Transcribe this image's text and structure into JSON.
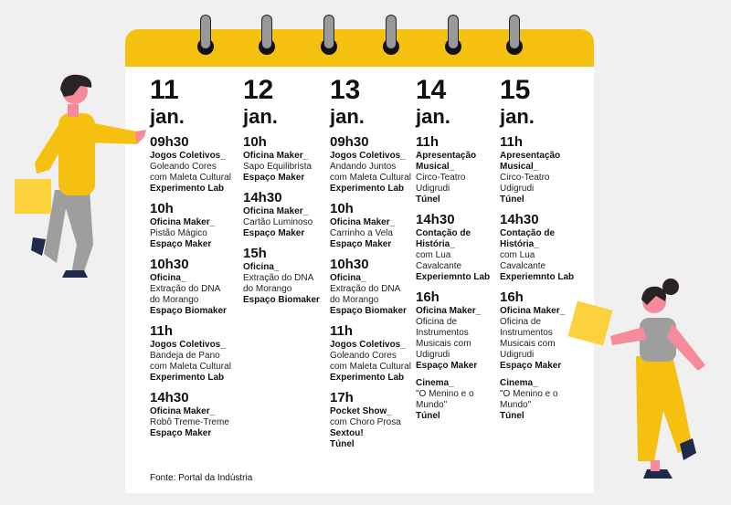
{
  "colors": {
    "accent": "#f5c010",
    "background": "#f0f0f0",
    "skin": "#f48a9a"
  },
  "days": [
    {
      "day": "11",
      "month": "jan.",
      "entries": [
        {
          "time": "09h30",
          "blocks": [
            {
              "title": "Jogos Coletivos_",
              "desc": "Goleando Cores com Maleta Cultural",
              "place": [
                "Experimento Lab"
              ]
            }
          ]
        },
        {
          "time": "10h",
          "blocks": [
            {
              "title": "Oficina Maker_",
              "desc": "Pistão Mágico",
              "place": [
                "Espaço Maker"
              ]
            }
          ]
        },
        {
          "time": "10h30",
          "blocks": [
            {
              "title": "Oficina_",
              "desc": "Extração do DNA do Morango",
              "place": [
                "Espaço Biomaker"
              ]
            }
          ]
        },
        {
          "time": "11h",
          "blocks": [
            {
              "title": "Jogos Coletivos_",
              "desc": "Bandeja de Pano com Maleta Cultural",
              "place": [
                "Experimento Lab"
              ]
            }
          ]
        },
        {
          "time": "14h30",
          "blocks": [
            {
              "title": "Oficina Maker_",
              "desc": "Robô Treme-Treme",
              "place": [
                "Espaço Maker"
              ]
            }
          ]
        }
      ]
    },
    {
      "day": "12",
      "month": "jan.",
      "entries": [
        {
          "time": "10h",
          "blocks": [
            {
              "title": "Oficina Maker_",
              "desc": "Sapo Equilibrista",
              "place": [
                "Espaço Maker"
              ]
            }
          ]
        },
        {
          "time": "14h30",
          "blocks": [
            {
              "title": "Oficina Maker_",
              "desc": "Cartão Luminoso",
              "place": [
                "Espaço Maker"
              ]
            }
          ]
        },
        {
          "time": "15h",
          "blocks": [
            {
              "title": "Oficina_",
              "desc": "Extração do DNA do Morango",
              "place": [
                "Espaço Biomaker"
              ]
            }
          ]
        }
      ]
    },
    {
      "day": "13",
      "month": "jan.",
      "entries": [
        {
          "time": "09h30",
          "blocks": [
            {
              "title": "Jogos Coletivos_",
              "desc": "Andando Juntos com Maleta Cultural",
              "place": [
                "Experimento Lab"
              ]
            }
          ]
        },
        {
          "time": "10h",
          "blocks": [
            {
              "title": "Oficina Maker_",
              "desc": "Carrinho a Vela",
              "place": [
                "Espaço Maker"
              ]
            }
          ]
        },
        {
          "time": "10h30",
          "blocks": [
            {
              "title": "Oficina_",
              "desc": "Extração do DNA do Morango",
              "place": [
                "Espaço Biomaker"
              ]
            }
          ]
        },
        {
          "time": "11h",
          "blocks": [
            {
              "title": "Jogos Coletivos_",
              "desc": "Goleando Cores com Maleta Cultural",
              "place": [
                "Experimento Lab"
              ]
            }
          ]
        },
        {
          "time": "17h",
          "blocks": [
            {
              "title": "Pocket Show_",
              "desc": "com Choro Prosa",
              "place": [
                "Sextou!",
                "Túnel"
              ]
            }
          ]
        }
      ]
    },
    {
      "day": "14",
      "month": "jan.",
      "entries": [
        {
          "time": "11h",
          "blocks": [
            {
              "title": "Apresentação Musical_",
              "desc": "Circo-Teatro Udigrudi",
              "place": [
                "Túnel"
              ]
            }
          ]
        },
        {
          "time": "14h30",
          "blocks": [
            {
              "title": "Contação de História_",
              "desc": "com Lua Cavalcante",
              "place": [
                "Experiemnto Lab"
              ]
            }
          ]
        },
        {
          "time": "16h",
          "blocks": [
            {
              "title": "Oficina Maker_",
              "desc": "Oficina de Instrumentos Musicais com Udigrudi",
              "place": [
                "Espaço Maker"
              ]
            },
            {
              "title": "Cinema_",
              "desc": "\"O Menino e o Mundo\"",
              "place": [
                "Túnel"
              ]
            }
          ]
        }
      ]
    },
    {
      "day": "15",
      "month": "jan.",
      "entries": [
        {
          "time": "11h",
          "blocks": [
            {
              "title": "Apresentação Musical_",
              "desc": "Circo-Teatro Udigrudi",
              "place": [
                "Túnel"
              ]
            }
          ]
        },
        {
          "time": "14h30",
          "blocks": [
            {
              "title": "Contação de História_",
              "desc": "com Lua Cavalcante",
              "place": [
                "Experiemnto Lab"
              ]
            }
          ]
        },
        {
          "time": "16h",
          "blocks": [
            {
              "title": "Oficina Maker_",
              "desc": "Oficina de Instrumentos Musicais com Udigrudi",
              "place": [
                "Espaço Maker"
              ]
            },
            {
              "title": "Cinema_",
              "desc": "\"O Menino e o Mundo\"",
              "place": [
                "Túnel"
              ]
            }
          ]
        }
      ]
    }
  ],
  "source": "Fonte: Portal da Indústria"
}
